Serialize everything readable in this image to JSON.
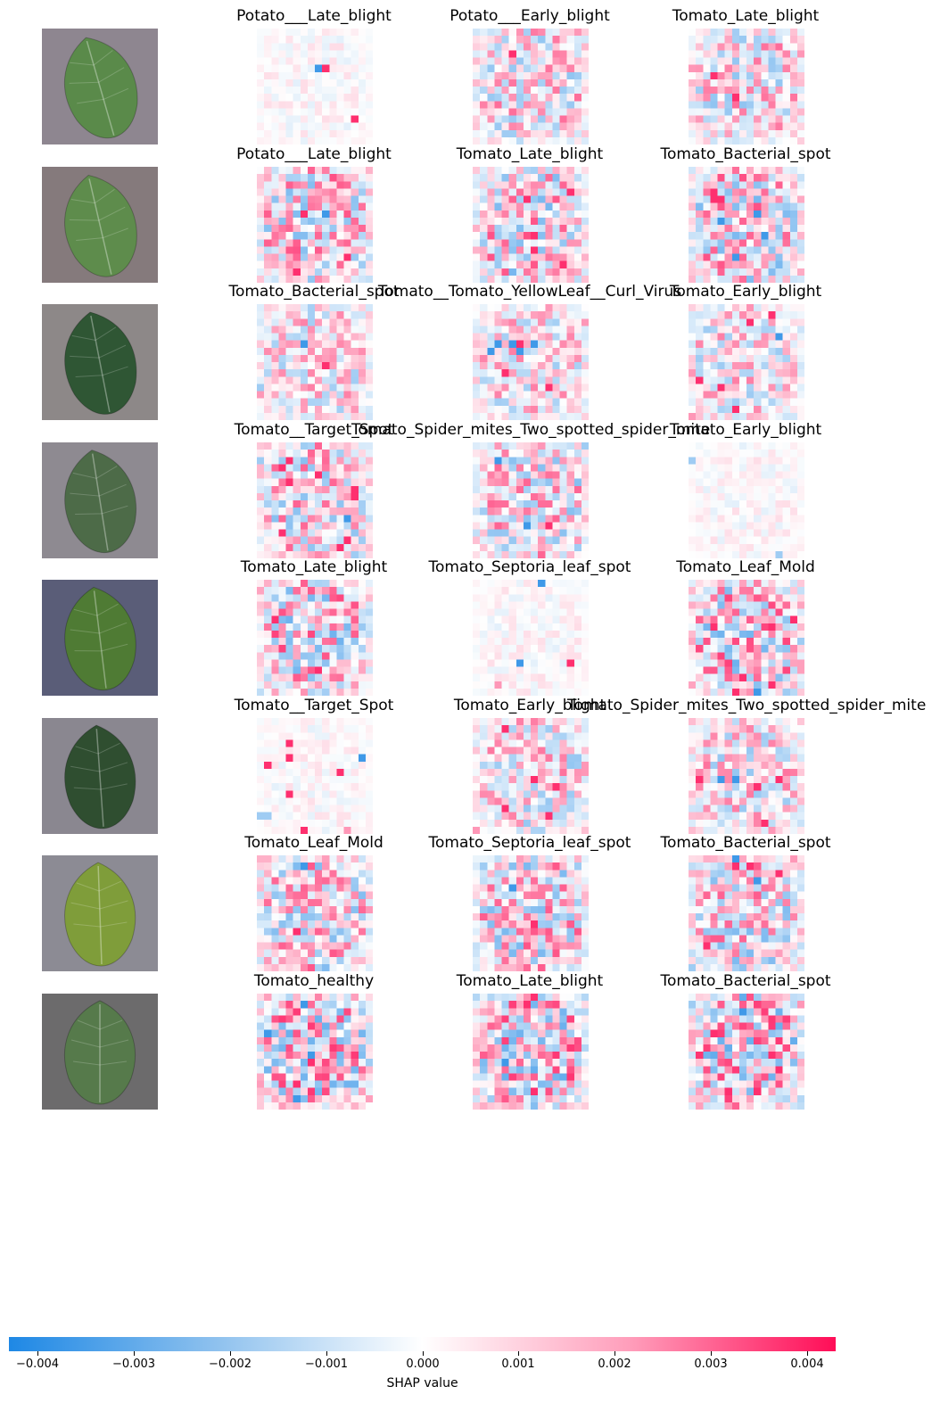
{
  "chart_data": {
    "type": "heatmap",
    "description_rows": [
      {
        "labels": [
          "Potato___Late_blight",
          "Potato___Early_blight",
          "Tomato_Late_blight"
        ],
        "leaf_color": "#5a8a4a",
        "bg_color": "#8e8690"
      },
      {
        "labels": [
          "Potato___Late_blight",
          "Tomato_Late_blight",
          "Tomato_Bacterial_spot"
        ],
        "leaf_color": "#5e8c4c",
        "bg_color": "#857a7c"
      },
      {
        "labels": [
          "Tomato_Bacterial_spot",
          "Tomato__Tomato_YellowLeaf__Curl_Virus",
          "Tomato_Early_blight"
        ],
        "leaf_color": "#2f5634",
        "bg_color": "#8d8888"
      },
      {
        "labels": [
          "Tomato__Target_Spot",
          "Tomato_Spider_mites_Two_spotted_spider_mite",
          "Tomato_Early_blight"
        ],
        "leaf_color": "#4d6b48",
        "bg_color": "#8e8a91"
      },
      {
        "labels": [
          "Tomato_Late_blight",
          "Tomato_Septoria_leaf_spot",
          "Tomato_Leaf_Mold"
        ],
        "leaf_color": "#4f7b34",
        "bg_color": "#5a5d78"
      },
      {
        "labels": [
          "Tomato__Target_Spot",
          "Tomato_Early_blight",
          "Tomato_Spider_mites_Two_spotted_spider_mite"
        ],
        "leaf_color": "#2f4e30",
        "bg_color": "#8a8790"
      },
      {
        "labels": [
          "Tomato_Leaf_Mold",
          "Tomato_Septoria_leaf_spot",
          "Tomato_Bacterial_spot"
        ],
        "leaf_color": "#7f9d3a",
        "bg_color": "#8c8b94"
      },
      {
        "labels": [
          "Tomato_healthy",
          "Tomato_Late_blight",
          "Tomato_Bacterial_spot"
        ],
        "leaf_color": "#567a4b",
        "bg_color": "#6c6b6c"
      }
    ],
    "colorbar": {
      "xlabel": "SHAP value",
      "vmin": -0.0043,
      "vmax": 0.0043,
      "ticks": [
        -0.004,
        -0.003,
        -0.002,
        -0.001,
        0.0,
        0.001,
        0.002,
        0.003,
        0.004
      ],
      "tick_labels": [
        "−0.004",
        "−0.003",
        "−0.002",
        "−0.001",
        "0.000",
        "0.001",
        "0.002",
        "0.003",
        "0.004"
      ],
      "colors": {
        "negative": "#1e88e5",
        "zero": "#ffffff",
        "positive": "#ff0d57"
      }
    }
  },
  "text": {
    "xlabel": "SHAP value"
  }
}
